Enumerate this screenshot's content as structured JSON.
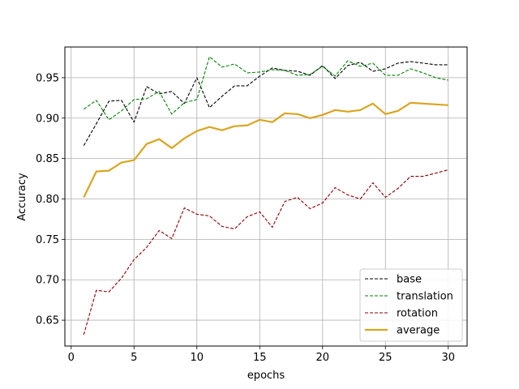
{
  "chart_data": {
    "type": "line",
    "xlabel": "epochs",
    "ylabel": "Accuracy",
    "xlim": [
      -0.5,
      31.5
    ],
    "ylim": [
      0.618,
      0.988
    ],
    "xticks": [
      0,
      5,
      10,
      15,
      20,
      25,
      30
    ],
    "yticks": [
      0.65,
      0.7,
      0.75,
      0.8,
      0.85,
      0.9,
      0.95
    ],
    "ytick_labels": [
      "0.65",
      "0.70",
      "0.75",
      "0.80",
      "0.85",
      "0.90",
      "0.95"
    ],
    "grid": true,
    "legend_position": "lower-right",
    "x": [
      1,
      2,
      3,
      4,
      5,
      6,
      7,
      8,
      9,
      10,
      11,
      12,
      13,
      14,
      15,
      16,
      17,
      18,
      19,
      20,
      21,
      22,
      23,
      24,
      25,
      26,
      27,
      28,
      29,
      30
    ],
    "series": [
      {
        "name": "base",
        "color": "#000000",
        "style": "dashed",
        "values": [
          0.866,
          0.893,
          0.921,
          0.922,
          0.895,
          0.939,
          0.93,
          0.933,
          0.918,
          0.95,
          0.913,
          0.927,
          0.94,
          0.94,
          0.952,
          0.962,
          0.959,
          0.958,
          0.953,
          0.965,
          0.949,
          0.965,
          0.969,
          0.958,
          0.961,
          0.968,
          0.97,
          0.968,
          0.966,
          0.966
        ]
      },
      {
        "name": "translation",
        "color": "#008000",
        "style": "dashed",
        "values": [
          0.911,
          0.922,
          0.898,
          0.909,
          0.923,
          0.924,
          0.933,
          0.905,
          0.919,
          0.923,
          0.976,
          0.963,
          0.967,
          0.956,
          0.957,
          0.96,
          0.959,
          0.953,
          0.954,
          0.964,
          0.952,
          0.971,
          0.964,
          0.968,
          0.953,
          0.953,
          0.961,
          0.956,
          0.95,
          0.947
        ]
      },
      {
        "name": "rotation",
        "color": "#8b0000",
        "style": "dashed",
        "values": [
          0.632,
          0.687,
          0.685,
          0.702,
          0.725,
          0.74,
          0.761,
          0.751,
          0.789,
          0.781,
          0.779,
          0.766,
          0.763,
          0.778,
          0.784,
          0.765,
          0.797,
          0.802,
          0.788,
          0.795,
          0.814,
          0.805,
          0.8,
          0.82,
          0.802,
          0.813,
          0.828,
          0.828,
          0.832,
          0.836
        ]
      },
      {
        "name": "average",
        "color": "#daa520",
        "style": "solid",
        "values": [
          0.802,
          0.834,
          0.835,
          0.845,
          0.848,
          0.868,
          0.874,
          0.863,
          0.875,
          0.884,
          0.889,
          0.885,
          0.89,
          0.891,
          0.898,
          0.895,
          0.906,
          0.905,
          0.9,
          0.904,
          0.91,
          0.908,
          0.91,
          0.918,
          0.905,
          0.909,
          0.919,
          0.918,
          0.917,
          0.916
        ]
      }
    ]
  }
}
